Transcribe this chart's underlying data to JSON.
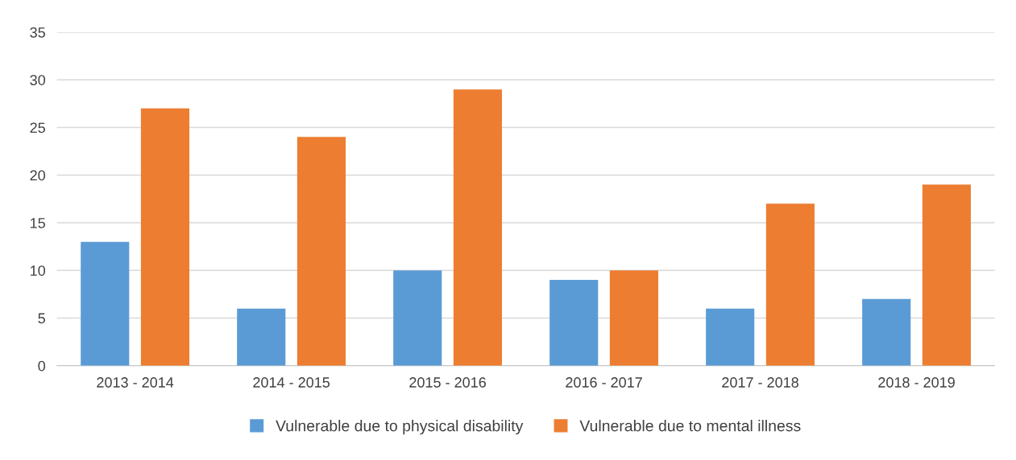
{
  "chart_data": {
    "type": "bar",
    "categories": [
      "2013 - 2014",
      "2014 - 2015",
      "2015 - 2016",
      "2016 - 2017",
      "2017 - 2018",
      "2018 - 2019"
    ],
    "series": [
      {
        "name": "Vulnerable due to physical disability",
        "color": "#5b9bd5",
        "values": [
          13,
          6,
          10,
          9,
          6,
          7
        ]
      },
      {
        "name": "Vulnerable due to mental illness",
        "color": "#ed7d31",
        "values": [
          27,
          24,
          29,
          10,
          17,
          19
        ]
      }
    ],
    "ylim": [
      0,
      35
    ],
    "yticks": [
      0,
      5,
      10,
      15,
      20,
      25,
      30,
      35
    ],
    "grid": "y",
    "legend": "bottom"
  }
}
